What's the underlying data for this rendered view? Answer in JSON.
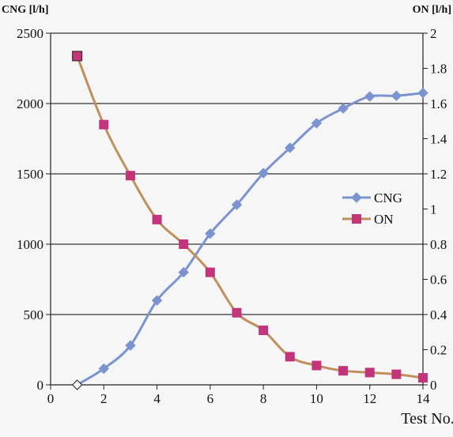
{
  "chart_data": {
    "type": "line",
    "x": [
      1,
      2,
      3,
      4,
      5,
      6,
      7,
      8,
      9,
      10,
      11,
      12,
      13,
      14
    ],
    "series": [
      {
        "name": "CNG",
        "axis": "left",
        "color": "#7b93cf",
        "marker": "diamond",
        "values": [
          0,
          115,
          280,
          600,
          800,
          1075,
          1280,
          1505,
          1685,
          1860,
          1965,
          2050,
          2055,
          2075
        ]
      },
      {
        "name": "ON",
        "axis": "right",
        "color": "#bf8f5e",
        "marker": "square",
        "marker_color": "#c2357b",
        "values": [
          1.87,
          1.48,
          1.19,
          0.94,
          0.8,
          0.64,
          0.41,
          0.31,
          0.16,
          0.11,
          0.08,
          0.07,
          0.06,
          0.04
        ]
      }
    ],
    "left_axis_title": "CNG [l/h]",
    "right_axis_title": "ON [l/h]",
    "xlabel": "Test No.",
    "xlim": [
      0,
      14
    ],
    "ylim_left": [
      0,
      2500
    ],
    "ylim_right": [
      0,
      2
    ],
    "x_ticks": [
      "0",
      "2",
      "4",
      "6",
      "8",
      "10",
      "12",
      "14"
    ],
    "y_left_ticks": [
      "0",
      "500",
      "1000",
      "1500",
      "2000",
      "2500"
    ],
    "y_right_ticks": [
      "0",
      "0.2",
      "0.4",
      "0.6",
      "0.8",
      "1",
      "1.2",
      "1.4",
      "1.6",
      "1.8",
      "2"
    ],
    "grid": "horizontal",
    "legend": "right-middle"
  }
}
